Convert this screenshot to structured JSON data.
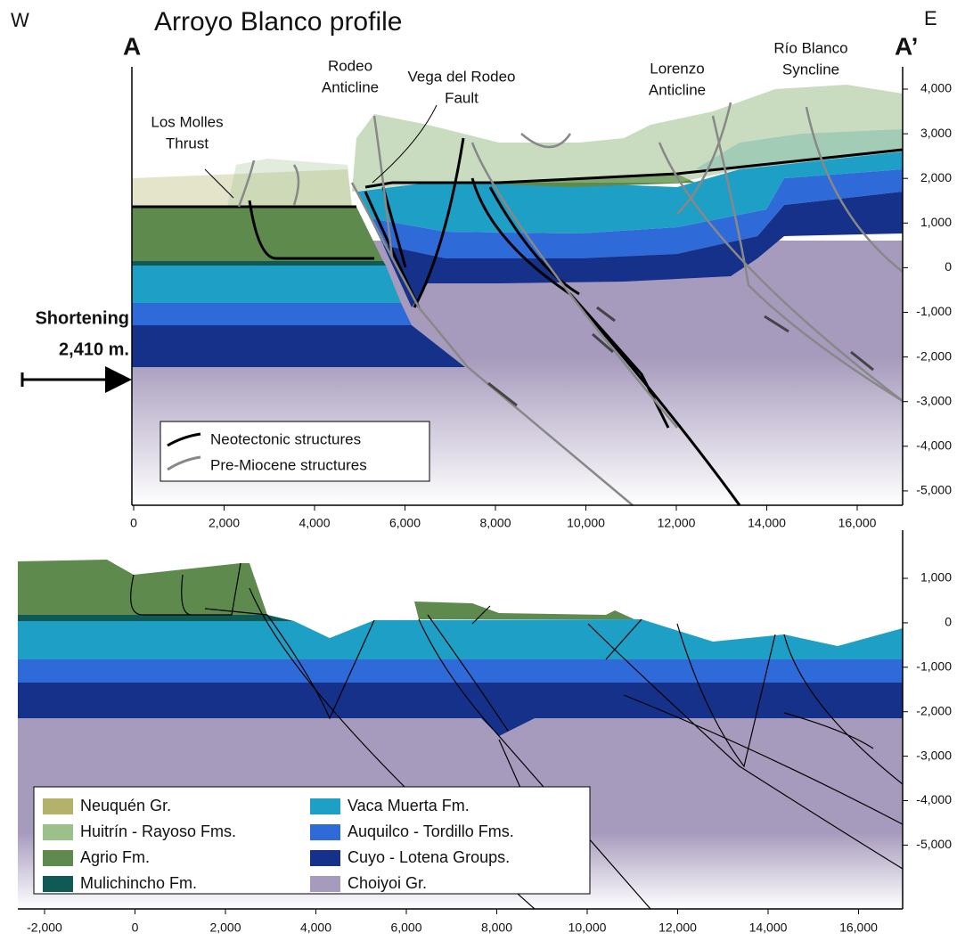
{
  "header": {
    "west": "W",
    "title": "Arroyo Blanco profile",
    "east": "E",
    "a": "A",
    "a_prime": "A’"
  },
  "structure_labels": [
    {
      "lines": [
        "Los Molles",
        "Thrust"
      ]
    },
    {
      "lines": [
        "Rodeo",
        "Anticline"
      ]
    },
    {
      "lines": [
        "Vega del Rodeo",
        "Fault"
      ]
    },
    {
      "lines": [
        "Lorenzo",
        "Anticline"
      ]
    },
    {
      "lines": [
        "Río Blanco",
        "Syncline"
      ]
    }
  ],
  "shortening": {
    "lines": [
      "Shortening",
      "2,410 m."
    ]
  },
  "structure_legend": [
    "Neotectonic structures",
    "Pre-Miocene structures"
  ],
  "top_panel": {
    "x_ticks": [
      "0",
      "2,000",
      "4,000",
      "6,000",
      "8,000",
      "10,000",
      "12,000",
      "14,000",
      "16,000"
    ],
    "y_ticks": [
      "4,000",
      "3,000",
      "2,000",
      "1,000",
      "0",
      "-1,000",
      "-2,000",
      "-3,000",
      "-4,000",
      "-5,000"
    ]
  },
  "bottom_panel": {
    "x_ticks": [
      "-2,000",
      "0",
      "2,000",
      "4,000",
      "6,000",
      "8,000",
      "10,000",
      "12,000",
      "14,000",
      "16,000"
    ],
    "y_ticks": [
      "1,000",
      "0",
      "-1,000",
      "-2,000",
      "-3,000",
      "-4,000",
      "-5,000"
    ]
  },
  "legend": [
    {
      "name": "Neuquén Gr.",
      "color": "#b3b16a"
    },
    {
      "name": "Huitrín - Rayoso Fms.",
      "color": "#9cc08a"
    },
    {
      "name": "Agrio Fm.",
      "color": "#5e8a4d"
    },
    {
      "name": "Mulichincho Fm.",
      "color": "#0f5a55"
    },
    {
      "name": "Vaca Muerta Fm.",
      "color": "#1e9fc6"
    },
    {
      "name": "Auquilco - Tordillo Fms.",
      "color": "#2f6bd8"
    },
    {
      "name": "Cuyo - Lotena Groups.",
      "color": "#15318a"
    },
    {
      "name": "Choiyoi Gr.",
      "color": "#a79bbd"
    }
  ]
}
